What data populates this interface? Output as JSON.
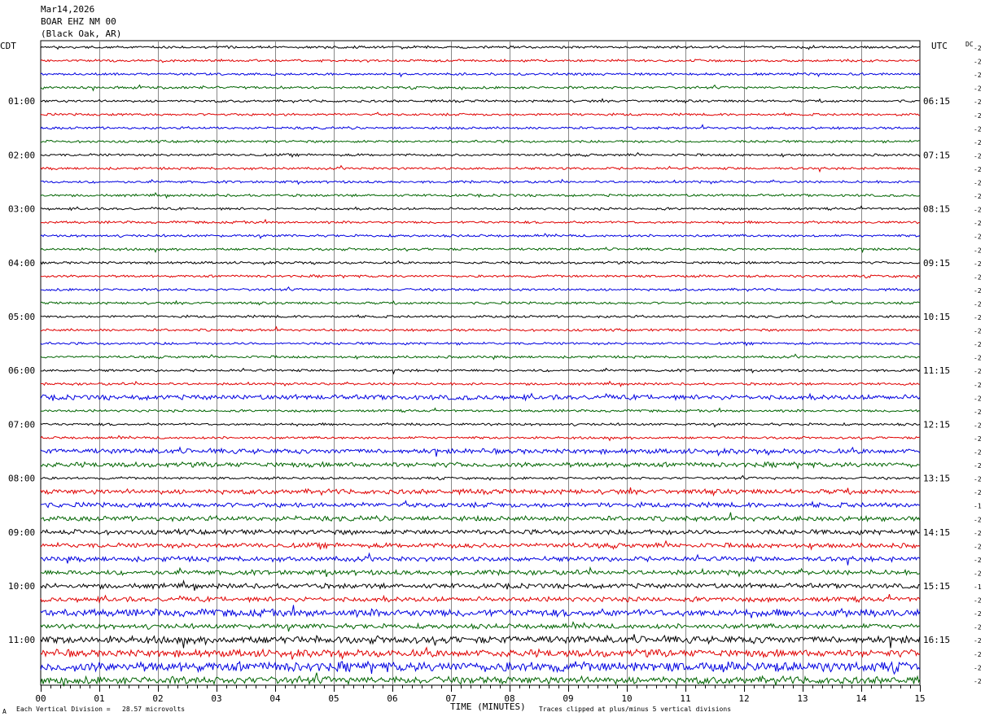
{
  "header": {
    "date": "Mar14,2026",
    "station": "BOAR EHZ NM 00",
    "location": "(Black Oak, AR)"
  },
  "left_tz": "CDT",
  "right_tz": "UTC",
  "dc_label": "DC",
  "footer": {
    "scale": "Each Vertical Division =   28.57 microvolts",
    "clip": "Traces clipped at plus/minus 5 vertical divisions",
    "mark": "A"
  },
  "chart_data": {
    "type": "line",
    "title": "",
    "xlabel": "TIME (MINUTES)",
    "ylabel": "",
    "x_range": [
      0,
      15
    ],
    "x_ticks": [
      "00",
      "01",
      "02",
      "03",
      "04",
      "05",
      "06",
      "07",
      "08",
      "09",
      "10",
      "11",
      "12",
      "13",
      "14",
      "15"
    ],
    "trace_colors": [
      "#000000",
      "#e00000",
      "#0000e0",
      "#006400"
    ],
    "left_hour_labels": [
      "01:00",
      "02:00",
      "03:00",
      "04:00",
      "05:00",
      "06:00",
      "07:00",
      "08:00",
      "09:00",
      "10:00",
      "11:00"
    ],
    "right_hour_labels": [
      "06:15",
      "07:15",
      "08:15",
      "09:15",
      "10:15",
      "11:15",
      "12:15",
      "13:15",
      "14:15",
      "15:15",
      "16:15"
    ],
    "right_values": [
      -2,
      -2,
      -2,
      -2,
      -2,
      -2,
      -2,
      -2,
      -2,
      -2,
      -2,
      -2,
      -2,
      -2,
      -2,
      -2,
      -2,
      -2,
      -2,
      -2,
      -2,
      -2,
      -2,
      -2,
      -2,
      -2,
      -2,
      -2,
      -2,
      -2,
      -2,
      -2,
      -2,
      -2,
      -1,
      -2,
      -2,
      -2,
      -2,
      -2,
      -1,
      -2,
      -2,
      -2,
      -2,
      -2,
      -2,
      -2
    ],
    "trace_activity": [
      1,
      1,
      1,
      1,
      1,
      1,
      1,
      1,
      1,
      1,
      1,
      1,
      1,
      1,
      1,
      1,
      1,
      1,
      1,
      1,
      1,
      1,
      1,
      1,
      1,
      1,
      2,
      1,
      1,
      1,
      2,
      2,
      1,
      2,
      2,
      2,
      2,
      2,
      2,
      2,
      2,
      2,
      3,
      2,
      3,
      3,
      4,
      3
    ]
  }
}
